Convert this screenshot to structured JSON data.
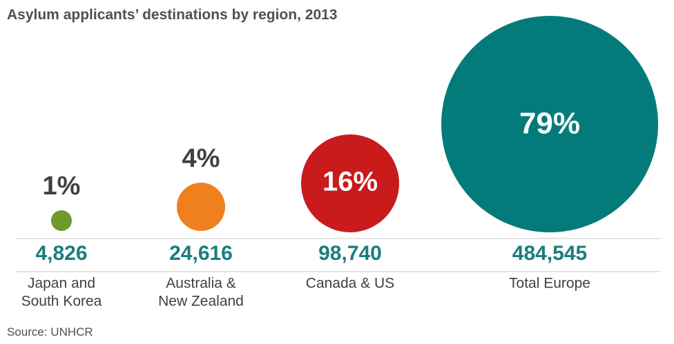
{
  "chart_data": {
    "type": "bubble",
    "title": "Asylum applicants’ destinations by region, 2013",
    "source": "Source: UNHCR",
    "items": [
      {
        "percent": "1%",
        "count": "4,826",
        "label": [
          "Japan and",
          "South Korea"
        ],
        "color": "#6f9a2e"
      },
      {
        "percent": "4%",
        "count": "24,616",
        "label": [
          "Australia &",
          "New Zealand"
        ],
        "color": "#f07f1e"
      },
      {
        "percent": "16%",
        "count": "98,740",
        "label": [
          "Canada & US"
        ],
        "color": "#c91a1c"
      },
      {
        "percent": "79%",
        "count": "484,545",
        "label": [
          "Total Europe"
        ],
        "color": "#047b7b"
      }
    ],
    "colors": {
      "count_text": "#1a7d7d",
      "percent_dark": "#404040",
      "percent_light": "#ffffff",
      "rule": "#d9d9d9"
    }
  }
}
